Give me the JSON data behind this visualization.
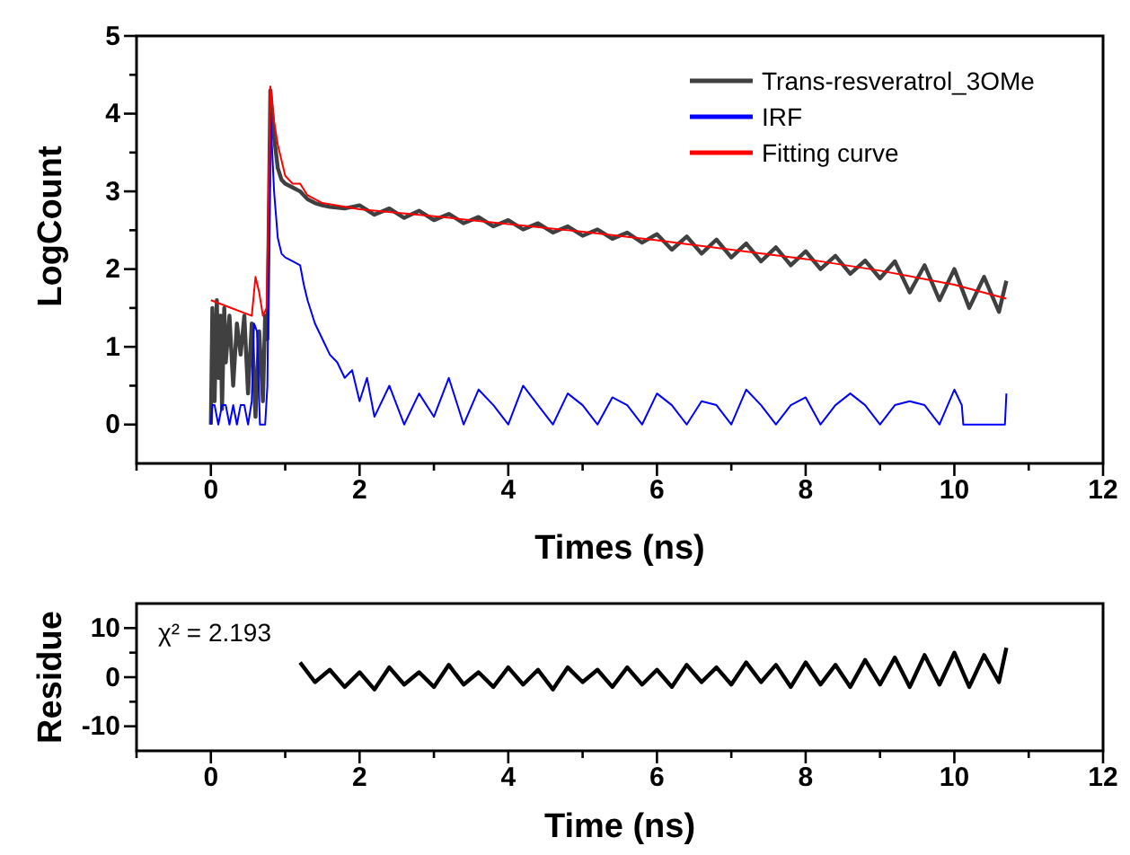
{
  "chart_data": [
    {
      "type": "line",
      "xlabel": "Times (ns)",
      "ylabel": "LogCount",
      "legend": "top right",
      "xlim": [
        -1,
        12
      ],
      "ylim": [
        -0.5,
        5
      ],
      "xticks": [
        {
          "value": -1,
          "label": null
        },
        0,
        {
          "value": 1,
          "label": null
        },
        2,
        {
          "value": 3,
          "label": null
        },
        4,
        {
          "value": 5,
          "label": null
        },
        6,
        {
          "value": 7,
          "label": null
        },
        8,
        {
          "value": 9,
          "label": null
        },
        10,
        {
          "value": 11,
          "label": null
        },
        12
      ],
      "yticks": [
        0,
        {
          "value": 0.5,
          "label": null
        },
        1,
        {
          "value": 1.5,
          "label": null
        },
        2,
        {
          "value": 2.5,
          "label": null
        },
        3,
        {
          "value": 3.5,
          "label": null
        },
        4,
        {
          "value": 4.5,
          "label": null
        },
        5
      ],
      "series": [
        {
          "name": "Trans-resveratrol_3OMe",
          "color": "#404040",
          "x": [
            0,
            0.02,
            0.05,
            0.08,
            0.1,
            0.13,
            0.15,
            0.18,
            0.2,
            0.25,
            0.3,
            0.35,
            0.4,
            0.45,
            0.5,
            0.55,
            0.6,
            0.65,
            0.7,
            0.73,
            0.76,
            0.8,
            0.85,
            0.9,
            0.95,
            1.0,
            1.1,
            1.2,
            1.3,
            1.4,
            1.5,
            1.6,
            1.8,
            2.0,
            2.2,
            2.4,
            2.6,
            2.8,
            3.0,
            3.2,
            3.4,
            3.6,
            3.8,
            4.0,
            4.2,
            4.4,
            4.6,
            4.8,
            5.0,
            5.2,
            5.4,
            5.6,
            5.8,
            6.0,
            6.2,
            6.4,
            6.6,
            6.8,
            7.0,
            7.2,
            7.4,
            7.6,
            7.8,
            8.0,
            8.2,
            8.4,
            8.6,
            8.8,
            9.0,
            9.2,
            9.4,
            9.6,
            9.8,
            10.0,
            10.2,
            10.4,
            10.6,
            10.7
          ],
          "values": [
            0,
            1.5,
            0.3,
            1.6,
            0.6,
            1.4,
            0.2,
            1.5,
            0.8,
            1.4,
            0.5,
            1.3,
            0.9,
            1.4,
            0.4,
            1.3,
            0.1,
            1.2,
            0.3,
            1.4,
            1.1,
            4.3,
            3.7,
            3.3,
            3.15,
            3.1,
            3.05,
            3.0,
            2.9,
            2.85,
            2.82,
            2.8,
            2.78,
            2.82,
            2.7,
            2.78,
            2.66,
            2.75,
            2.63,
            2.71,
            2.59,
            2.67,
            2.55,
            2.63,
            2.51,
            2.59,
            2.47,
            2.55,
            2.43,
            2.51,
            2.39,
            2.47,
            2.34,
            2.45,
            2.25,
            2.42,
            2.2,
            2.38,
            2.15,
            2.33,
            2.1,
            2.28,
            2.05,
            2.23,
            2.0,
            2.17,
            1.94,
            2.11,
            1.88,
            2.1,
            1.7,
            2.05,
            1.6,
            2.0,
            1.5,
            1.9,
            1.45,
            1.85
          ]
        },
        {
          "name": "IRF",
          "color": "#0000ff",
          "x": [
            0,
            0.02,
            0.05,
            0.1,
            0.15,
            0.2,
            0.25,
            0.3,
            0.35,
            0.4,
            0.45,
            0.5,
            0.55,
            0.58,
            0.62,
            0.66,
            0.7,
            0.73,
            0.76,
            0.8,
            0.85,
            0.9,
            0.95,
            1.0,
            1.1,
            1.2,
            1.25,
            1.3,
            1.4,
            1.5,
            1.6,
            1.7,
            1.8,
            1.9,
            2.0,
            2.1,
            2.2,
            2.4,
            2.6,
            2.8,
            3.0,
            3.2,
            3.4,
            3.6,
            3.8,
            4.0,
            4.2,
            4.4,
            4.6,
            4.8,
            5.0,
            5.2,
            5.4,
            5.6,
            5.8,
            6.0,
            6.2,
            6.4,
            6.6,
            6.8,
            7.0,
            7.2,
            7.4,
            7.6,
            7.8,
            8.0,
            8.2,
            8.4,
            8.6,
            8.8,
            9.0,
            9.2,
            9.4,
            9.6,
            9.8,
            10.0,
            10.1,
            10.12,
            10.68,
            10.7
          ],
          "values": [
            0,
            0.25,
            0.25,
            0,
            0.25,
            0.25,
            0,
            0.25,
            0,
            0.25,
            0.25,
            0,
            0.3,
            1.3,
            1.2,
            0,
            0,
            0,
            0.5,
            4.0,
            3.0,
            2.4,
            2.2,
            2.15,
            2.1,
            2.05,
            1.8,
            1.6,
            1.3,
            1.1,
            0.9,
            0.8,
            0.6,
            0.7,
            0.3,
            0.6,
            0.1,
            0.5,
            0,
            0.4,
            0.1,
            0.6,
            0,
            0.45,
            0.25,
            0,
            0.5,
            0.25,
            0,
            0.4,
            0.25,
            0,
            0.35,
            0.25,
            0,
            0.4,
            0.25,
            0,
            0.3,
            0.25,
            0,
            0.45,
            0.25,
            0,
            0.25,
            0.35,
            0,
            0.25,
            0.4,
            0.25,
            0,
            0.25,
            0.3,
            0.25,
            0,
            0.45,
            0.25,
            0,
            0,
            0.4
          ]
        },
        {
          "name": "Fitting curve",
          "color": "#ff0000",
          "x": [
            0,
            0.55,
            0.6,
            0.65,
            0.7,
            0.75,
            0.8,
            0.85,
            0.9,
            1.0,
            1.1,
            1.2,
            1.3,
            1.5,
            2,
            3,
            4,
            5,
            6,
            7,
            8,
            9,
            10,
            10.7
          ],
          "values": [
            1.6,
            1.4,
            1.9,
            1.7,
            1.4,
            1.5,
            4.35,
            3.9,
            3.6,
            3.2,
            3.1,
            3.1,
            2.95,
            2.85,
            2.77,
            2.68,
            2.58,
            2.48,
            2.37,
            2.25,
            2.13,
            1.98,
            1.8,
            1.62
          ]
        }
      ]
    },
    {
      "type": "line",
      "xlabel": "Time (ns)",
      "ylabel": "Residue",
      "annotations": [
        "χ² = 2.193"
      ],
      "xlim": [
        -1,
        12
      ],
      "ylim": [
        -15,
        15
      ],
      "xticks": [
        {
          "value": -1,
          "label": null
        },
        0,
        {
          "value": 1,
          "label": null
        },
        2,
        {
          "value": 3,
          "label": null
        },
        4,
        {
          "value": 5,
          "label": null
        },
        6,
        {
          "value": 7,
          "label": null
        },
        8,
        {
          "value": 9,
          "label": null
        },
        10,
        {
          "value": 11,
          "label": null
        },
        12
      ],
      "yticks": [
        -10,
        {
          "value": -5,
          "label": null
        },
        0,
        {
          "value": 5,
          "label": null
        },
        10
      ],
      "series": [
        {
          "color": "#000000",
          "x": [
            1.2,
            1.4,
            1.6,
            1.8,
            2.0,
            2.2,
            2.4,
            2.6,
            2.8,
            3.0,
            3.2,
            3.4,
            3.6,
            3.8,
            4.0,
            4.2,
            4.4,
            4.6,
            4.8,
            5.0,
            5.2,
            5.4,
            5.6,
            5.8,
            6.0,
            6.2,
            6.4,
            6.6,
            6.8,
            7.0,
            7.2,
            7.4,
            7.6,
            7.8,
            8.0,
            8.2,
            8.4,
            8.6,
            8.8,
            9.0,
            9.2,
            9.4,
            9.6,
            9.8,
            10.0,
            10.2,
            10.4,
            10.6,
            10.7
          ],
          "values": [
            3,
            -1,
            1.5,
            -2,
            1,
            -2.5,
            2,
            -1.5,
            1,
            -2,
            2.5,
            -1.5,
            1,
            -2,
            2,
            -1.5,
            1.5,
            -2.5,
            2,
            -1,
            1.5,
            -2,
            2,
            -1.5,
            1.5,
            -2,
            2.5,
            -1,
            2,
            -1.5,
            3,
            -1,
            2.5,
            -2,
            3,
            -1.5,
            2.5,
            -2,
            3.5,
            -1.5,
            4,
            -2,
            4.5,
            -1.5,
            5,
            -2,
            4.5,
            -1,
            6
          ]
        }
      ]
    }
  ]
}
